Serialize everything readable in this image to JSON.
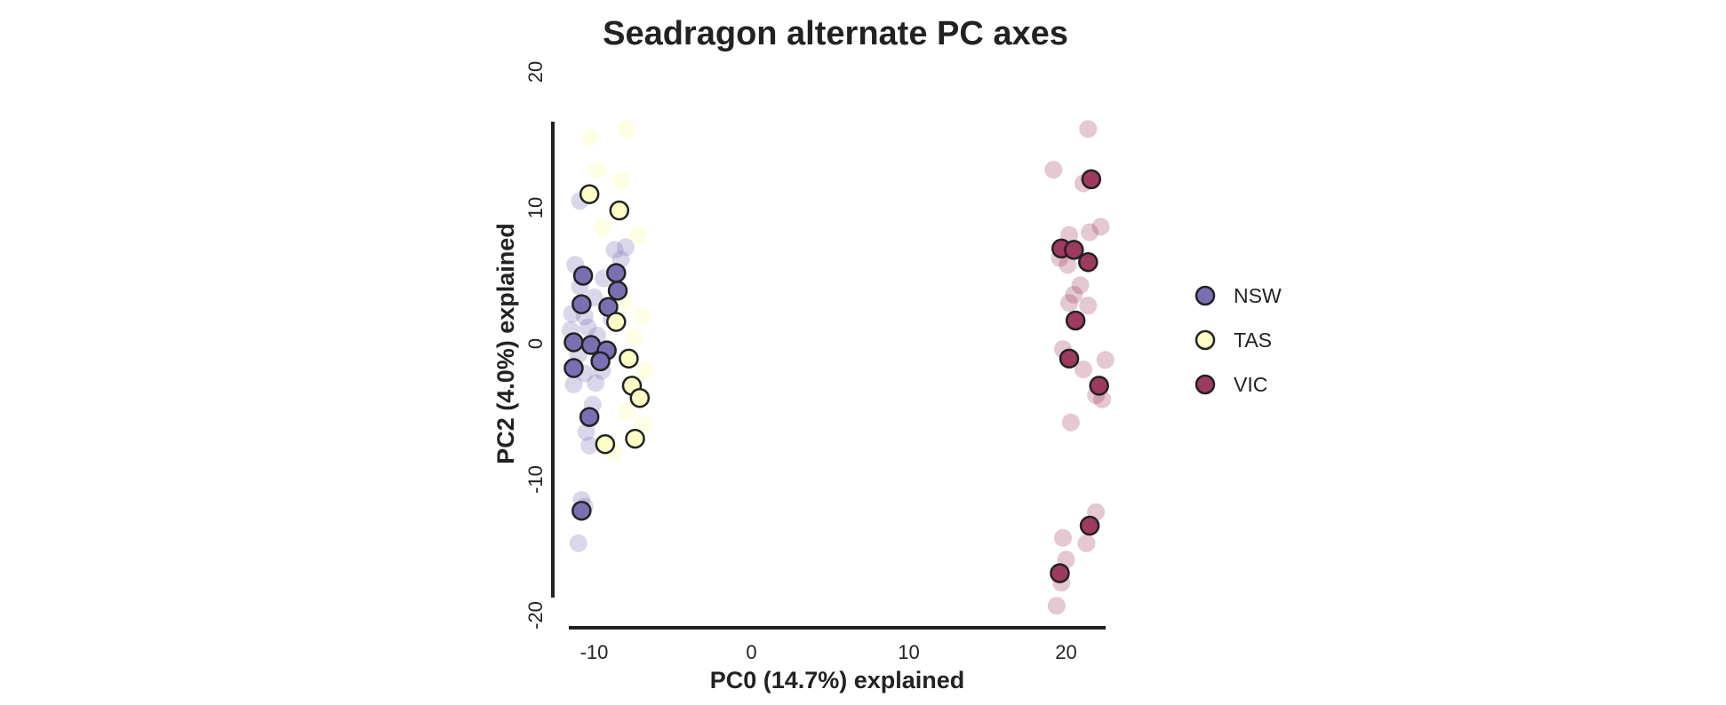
{
  "chart_data": {
    "type": "scatter",
    "title": "Seadragon alternate PC axes",
    "xlabel": "PC0 (14.7%) explained",
    "ylabel": "PC2 (4.0%) explained",
    "xlim": [
      -11.5,
      23
    ],
    "ylim": [
      -20,
      20
    ],
    "xticks": [
      "-10",
      "0",
      "10",
      "20"
    ],
    "yticks": [
      "-20",
      "-10",
      "0",
      "10",
      "20"
    ],
    "legend_position": "right",
    "grid": false,
    "colors": {
      "NSW": "#7b6fb4",
      "TAS": "#fdfdc6",
      "VIC": "#9e3a5f",
      "edge": "#222222",
      "axis": "#222222"
    },
    "series": [
      {
        "name": "NSW",
        "points": [
          [
            -10.7,
            5.0
          ],
          [
            -10.8,
            2.9
          ],
          [
            -11.3,
            0.1
          ],
          [
            -10.2,
            -0.1
          ],
          [
            -9.2,
            -0.5
          ],
          [
            -11.3,
            -1.8
          ],
          [
            -9.6,
            -1.3
          ],
          [
            -9.1,
            2.7
          ],
          [
            -8.6,
            5.2
          ],
          [
            -8.5,
            3.9
          ],
          [
            -10.3,
            -5.4
          ],
          [
            -10.8,
            -12.3
          ]
        ],
        "faded": [
          [
            -11.2,
            5.8
          ],
          [
            -10.9,
            4.2
          ],
          [
            -11.4,
            2.2
          ],
          [
            -10.6,
            2.0
          ],
          [
            -11.5,
            1.0
          ],
          [
            -10.4,
            1.2
          ],
          [
            -9.8,
            0.6
          ],
          [
            -8.9,
            1.8
          ],
          [
            -8.3,
            6.2
          ],
          [
            -8.0,
            7.1
          ],
          [
            -8.7,
            6.9
          ],
          [
            -9.4,
            4.8
          ],
          [
            -10.0,
            3.4
          ],
          [
            -11.0,
            -0.8
          ],
          [
            -10.6,
            -2.2
          ],
          [
            -9.9,
            -2.9
          ],
          [
            -11.3,
            -3.0
          ],
          [
            -10.1,
            -4.5
          ],
          [
            -10.5,
            -6.5
          ],
          [
            -10.3,
            -7.5
          ],
          [
            -10.8,
            -11.5
          ],
          [
            -10.6,
            -12.0
          ],
          [
            -11.0,
            -14.7
          ],
          [
            -10.9,
            10.5
          ],
          [
            -9.5,
            -2.0
          ]
        ]
      },
      {
        "name": "TAS",
        "points": [
          [
            -10.3,
            11.0
          ],
          [
            -8.4,
            9.8
          ],
          [
            -8.6,
            1.6
          ],
          [
            -7.8,
            -1.1
          ],
          [
            -7.6,
            -3.1
          ],
          [
            -7.1,
            -4.0
          ],
          [
            -7.4,
            -7.0
          ],
          [
            -9.3,
            -7.4
          ]
        ],
        "faded": [
          [
            -10.2,
            15.2
          ],
          [
            -8.0,
            15.8
          ],
          [
            -8.3,
            12.0
          ],
          [
            -9.8,
            12.8
          ],
          [
            -7.2,
            8.0
          ],
          [
            -8.1,
            3.0
          ],
          [
            -7.0,
            2.0
          ],
          [
            -7.5,
            0.5
          ],
          [
            -6.8,
            -2.0
          ],
          [
            -7.9,
            -5.0
          ],
          [
            -6.9,
            -6.0
          ],
          [
            -8.8,
            -8.0
          ],
          [
            -9.5,
            8.5
          ]
        ]
      },
      {
        "name": "VIC",
        "points": [
          [
            21.6,
            12.1
          ],
          [
            19.7,
            7.0
          ],
          [
            20.5,
            6.9
          ],
          [
            21.4,
            6.0
          ],
          [
            20.6,
            1.7
          ],
          [
            20.2,
            -1.1
          ],
          [
            22.1,
            -3.1
          ],
          [
            21.5,
            -13.4
          ],
          [
            19.6,
            -16.9
          ]
        ],
        "faded": [
          [
            21.4,
            15.8
          ],
          [
            19.2,
            12.8
          ],
          [
            21.1,
            11.8
          ],
          [
            22.2,
            8.6
          ],
          [
            21.5,
            8.2
          ],
          [
            20.2,
            8.0
          ],
          [
            19.6,
            6.3
          ],
          [
            20.1,
            5.8
          ],
          [
            20.9,
            4.3
          ],
          [
            20.5,
            3.6
          ],
          [
            21.4,
            2.8
          ],
          [
            20.2,
            3.0
          ],
          [
            19.8,
            -0.4
          ],
          [
            21.1,
            -1.9
          ],
          [
            22.5,
            -1.2
          ],
          [
            21.9,
            -3.8
          ],
          [
            22.3,
            -4.1
          ],
          [
            20.3,
            -5.8
          ],
          [
            21.9,
            -12.4
          ],
          [
            21.3,
            -14.7
          ],
          [
            19.8,
            -14.3
          ],
          [
            20.0,
            -15.9
          ],
          [
            19.7,
            -17.6
          ],
          [
            19.4,
            -19.3
          ]
        ]
      }
    ]
  }
}
